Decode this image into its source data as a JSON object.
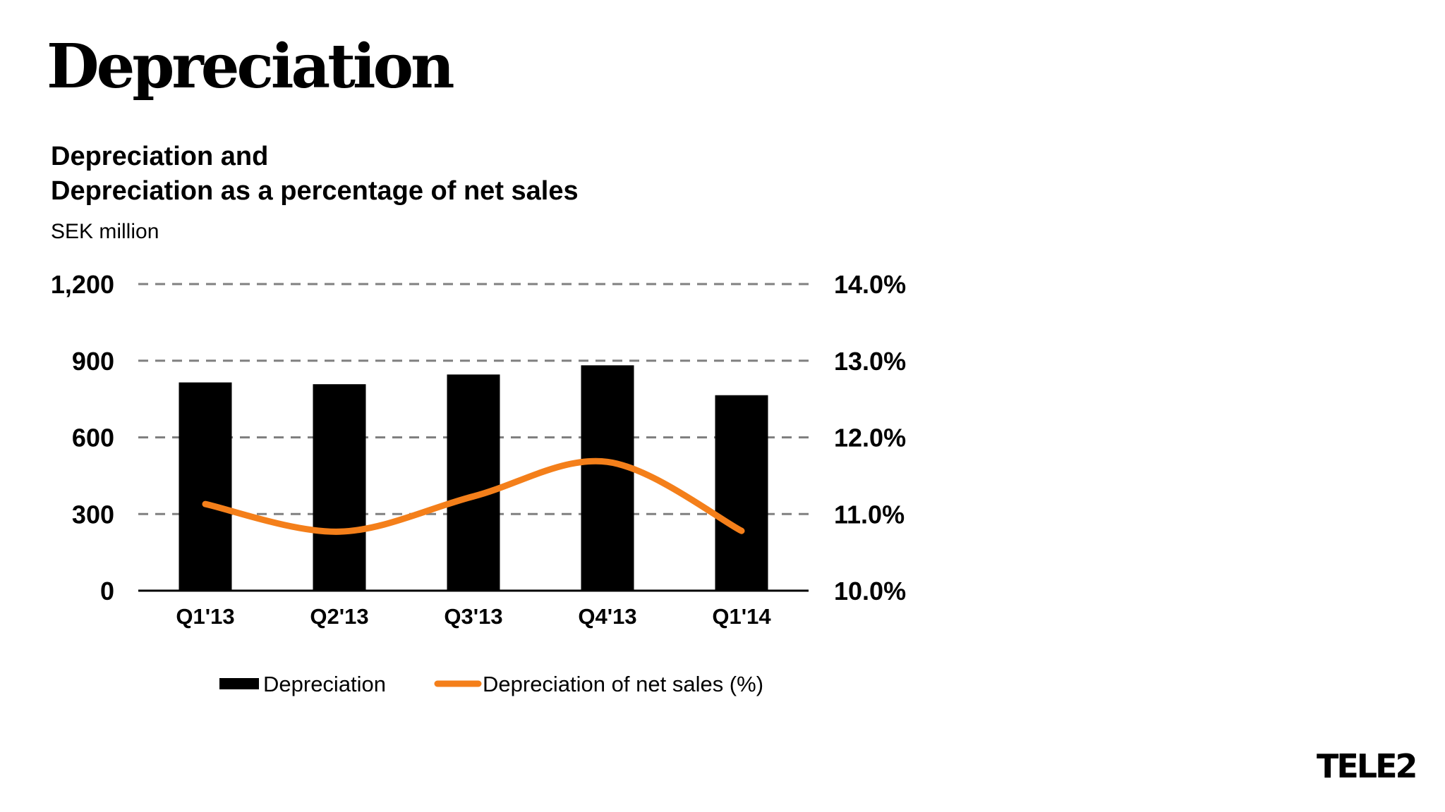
{
  "slide": {
    "title": "Depreciation",
    "subtitle_line1": "Depreciation and",
    "subtitle_line2": "Depreciation as a percentage of net sales",
    "unit": "SEK million",
    "logo_text": "TELE2"
  },
  "colors": {
    "bar": "#000000",
    "line": "#f47f1a",
    "grid": "#808080",
    "axis": "#000000"
  },
  "chart_data": {
    "type": "bar",
    "categories": [
      "Q1'13",
      "Q2'13",
      "Q3'13",
      "Q4'13",
      "Q1'14"
    ],
    "series": [
      {
        "name": "Depreciation",
        "type": "bar",
        "axis": "left",
        "values": [
          815,
          808,
          846,
          882,
          765
        ]
      },
      {
        "name": "Depreciation of net sales (%)",
        "type": "line",
        "axis": "right",
        "smooth": true,
        "values": [
          11.13,
          10.77,
          11.23,
          11.68,
          10.78
        ]
      }
    ],
    "y_left": {
      "min": 0,
      "max": 1200,
      "ticks": [
        0,
        300,
        600,
        900,
        1200
      ],
      "tick_labels": [
        "0",
        "300",
        "600",
        "900",
        "1,200"
      ]
    },
    "y_right": {
      "min": 10.0,
      "max": 14.0,
      "ticks": [
        10,
        11,
        12,
        13,
        14
      ],
      "tick_labels": [
        "10.0%",
        "11.0%",
        "12.0%",
        "13.0%",
        "14.0%"
      ]
    },
    "grid": "dashed-horizontal",
    "legend": [
      "Depreciation",
      "Depreciation of net sales (%)"
    ],
    "legend_position": "bottom"
  }
}
